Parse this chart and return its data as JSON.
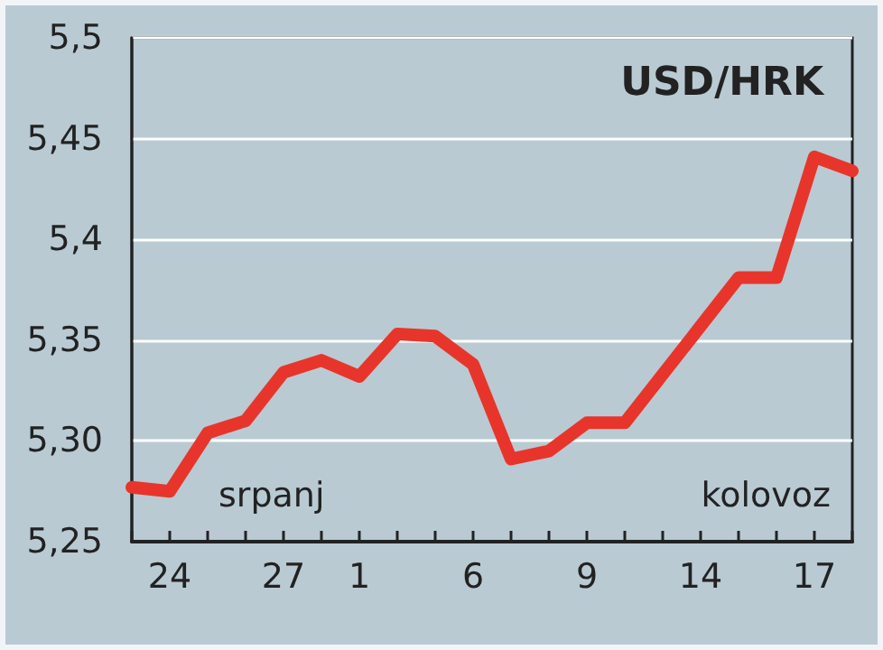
{
  "chart_data": {
    "type": "line",
    "title": "USD/HRK",
    "categories": [
      null,
      "24",
      null,
      null,
      "27",
      null,
      "1",
      null,
      null,
      "6",
      null,
      null,
      "9",
      null,
      null,
      "14",
      null,
      null,
      "17",
      null
    ],
    "series": [
      {
        "color": "#e8352b",
        "values": [
          5.277,
          5.275,
          5.304,
          5.31,
          5.334,
          5.34,
          5.332,
          5.353,
          5.352,
          5.338,
          5.291,
          5.295,
          5.309,
          5.309,
          5.333,
          5.357,
          5.381,
          5.381,
          5.441,
          5.434
        ]
      }
    ],
    "ylim": [
      5.25,
      5.5
    ],
    "yticks": [
      {
        "value": 5.25,
        "label": "5,25"
      },
      {
        "value": 5.3,
        "label": "5,30"
      },
      {
        "value": 5.35,
        "label": "5,35"
      },
      {
        "value": 5.4,
        "label": "5,4"
      },
      {
        "value": 5.45,
        "label": "5,45"
      },
      {
        "value": 5.5,
        "label": "5,5"
      }
    ],
    "annotations": [
      "srpanj",
      "kolovoz"
    ],
    "grid": "y",
    "line_style": "solid"
  }
}
